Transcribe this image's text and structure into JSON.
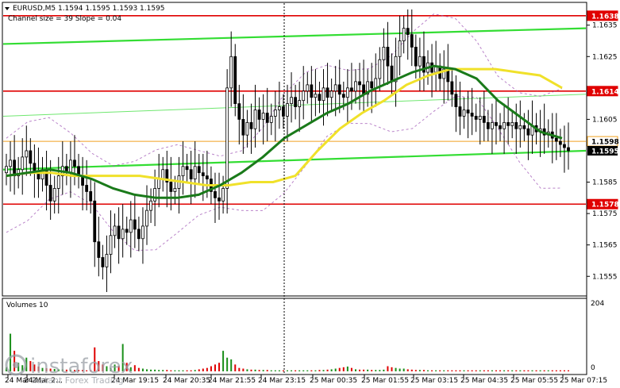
{
  "header": {
    "symbol_line": "EURUSD,M5  1.1594 1.1595 1.1593 1.1595",
    "channel_line": "Channel size = 39 Slope = 0.04"
  },
  "volumes_panel": {
    "label": "Volumes 10",
    "scale_top": "204",
    "scale_bottom": "0"
  },
  "watermark": {
    "brand": "instaforex",
    "tagline": "Instant Forex Trading"
  },
  "colors": {
    "bull_bar": "#1a8f1a",
    "bear_bar": "#e00000",
    "candle": "#000000",
    "fast_ma": "#f0e12a",
    "slow_ma": "#1a7a1a",
    "channel": "#33dd33",
    "bands": "#9b4fb2",
    "resistance": "#e00000",
    "current_line": "#f0a020",
    "price_tag": "#e00000",
    "current_tag": "#000000"
  },
  "chart_data": [
    {
      "type": "candlestick",
      "title": "EURUSD,M5",
      "x_tick_labels": [
        "24 Mar 2…",
        "24 Mar 2…",
        "24 Mar 19:15",
        "24 Mar 20:35",
        "24 Mar 21:55",
        "24 Mar 23:15",
        "25 Mar 00:35",
        "25 Mar 01:55",
        "25 Mar 03:15",
        "25 Mar 04:35",
        "25 Mar 05:55",
        "25 Mar 07:15"
      ],
      "y_ticks": [
        "1.1635",
        "1.1625",
        "1.1605",
        "1.1585",
        "1.1575",
        "1.1565",
        "1.1555"
      ],
      "ylim": [
        1.1549,
        1.1642
      ],
      "levels": [
        {
          "label": "1.1638",
          "value": 1.1638,
          "kind": "resistance"
        },
        {
          "label": "1.1614",
          "value": 1.1614,
          "kind": "resistance"
        },
        {
          "label": "1.1598",
          "value": 1.1598,
          "kind": "current-high"
        },
        {
          "label": "1.1578",
          "value": 1.1578,
          "kind": "support"
        }
      ],
      "current_price": {
        "label": "1.1595",
        "value": 1.1595
      },
      "channel_upper": [
        1.1629,
        1.1634
      ],
      "channel_lower": [
        1.1589,
        1.1595
      ],
      "channel_mid": [
        1.1606,
        1.1613
      ],
      "closes": [
        1.159,
        1.1592,
        1.1587,
        1.1589,
        1.1593,
        1.1595,
        1.1591,
        1.1588,
        1.1586,
        1.1589,
        1.1584,
        1.1579,
        1.1583,
        1.1587,
        1.159,
        1.1588,
        1.1592,
        1.159,
        1.1587,
        1.1584,
        1.1582,
        1.1579,
        1.1566,
        1.1561,
        1.1558,
        1.1562,
        1.1568,
        1.1571,
        1.1567,
        1.157,
        1.1569,
        1.1573,
        1.157,
        1.1567,
        1.1571,
        1.1576,
        1.1579,
        1.1583,
        1.1586,
        1.1589,
        1.1585,
        1.1582,
        1.1583,
        1.1587,
        1.159,
        1.1589,
        1.1586,
        1.159,
        1.1588,
        1.1587,
        1.1586,
        1.1582,
        1.158,
        1.1579,
        1.1583,
        1.1615,
        1.1625,
        1.161,
        1.1605,
        1.16,
        1.1604,
        1.1602,
        1.1608,
        1.1605,
        1.1607,
        1.1604,
        1.1606,
        1.1608,
        1.1609,
        1.1606,
        1.161,
        1.1612,
        1.1609,
        1.1611,
        1.1614,
        1.1616,
        1.1612,
        1.1613,
        1.1611,
        1.1615,
        1.1612,
        1.1614,
        1.1616,
        1.1613,
        1.1612,
        1.1615,
        1.1614,
        1.1617,
        1.1616,
        1.1613,
        1.1617,
        1.1615,
        1.1618,
        1.1624,
        1.1628,
        1.1622,
        1.1617,
        1.1625,
        1.163,
        1.1634,
        1.1632,
        1.1628,
        1.1622,
        1.1625,
        1.162,
        1.1623,
        1.162,
        1.1622,
        1.1618,
        1.1621,
        1.1617,
        1.1613,
        1.1609,
        1.1606,
        1.1608,
        1.1607,
        1.1606,
        1.1605,
        1.1606,
        1.1604,
        1.1602,
        1.1604,
        1.1603,
        1.1602,
        1.1604,
        1.1603,
        1.1604,
        1.1602,
        1.1603,
        1.1602,
        1.16,
        1.1603,
        1.1601,
        1.1602,
        1.16,
        1.1601,
        1.1599,
        1.1598,
        1.1597,
        1.1596,
        1.1595
      ],
      "fast_ma": [
        1.1587,
        1.1588,
        1.1588,
        1.1587,
        1.1587,
        1.1587,
        1.1587,
        1.1586,
        1.1585,
        1.1584,
        1.1584,
        1.1585,
        1.1585,
        1.1587,
        1.1595,
        1.1602,
        1.1607,
        1.1611,
        1.1616,
        1.1619,
        1.1621,
        1.1621,
        1.1621,
        1.162,
        1.1619,
        1.1615
      ],
      "slow_ma": [
        1.1587,
        1.1588,
        1.1589,
        1.1588,
        1.1586,
        1.1583,
        1.1581,
        1.158,
        1.158,
        1.1581,
        1.1584,
        1.1588,
        1.1593,
        1.1599,
        1.1603,
        1.1607,
        1.161,
        1.1614,
        1.1617,
        1.162,
        1.1622,
        1.1621,
        1.1618,
        1.1611,
        1.1606,
        1.1601,
        1.1599
      ]
    },
    {
      "type": "bar",
      "title": "Volumes 10",
      "ylim": [
        0,
        204
      ],
      "values": [
        12,
        110,
        60,
        25,
        18,
        40,
        30,
        20,
        14,
        10,
        9,
        8,
        7,
        6,
        6,
        5,
        5,
        4,
        4,
        4,
        3,
        3,
        70,
        30,
        20,
        15,
        10,
        20,
        16,
        80,
        25,
        12,
        18,
        10,
        8,
        6,
        5,
        5,
        4,
        4,
        4,
        3,
        3,
        3,
        3,
        3,
        3,
        4,
        6,
        8,
        10,
        15,
        20,
        25,
        60,
        40,
        35,
        20,
        10,
        8,
        6,
        5,
        5,
        4,
        4,
        4,
        3,
        3,
        3,
        3,
        3,
        3,
        3,
        3,
        3,
        3,
        3,
        3,
        4,
        4,
        5,
        6,
        8,
        10,
        12,
        14,
        10,
        6,
        5,
        5,
        5,
        4,
        4,
        4,
        5,
        15,
        12,
        10,
        8,
        8,
        6,
        5,
        4,
        4,
        4,
        3,
        3,
        3,
        3,
        3,
        3,
        3,
        3,
        3,
        3,
        3,
        3,
        3,
        3,
        3,
        3,
        3,
        3,
        3,
        3,
        3,
        3,
        3,
        3,
        3,
        3,
        3,
        3,
        3,
        3,
        3,
        3,
        3,
        3,
        3,
        3
      ]
    }
  ]
}
